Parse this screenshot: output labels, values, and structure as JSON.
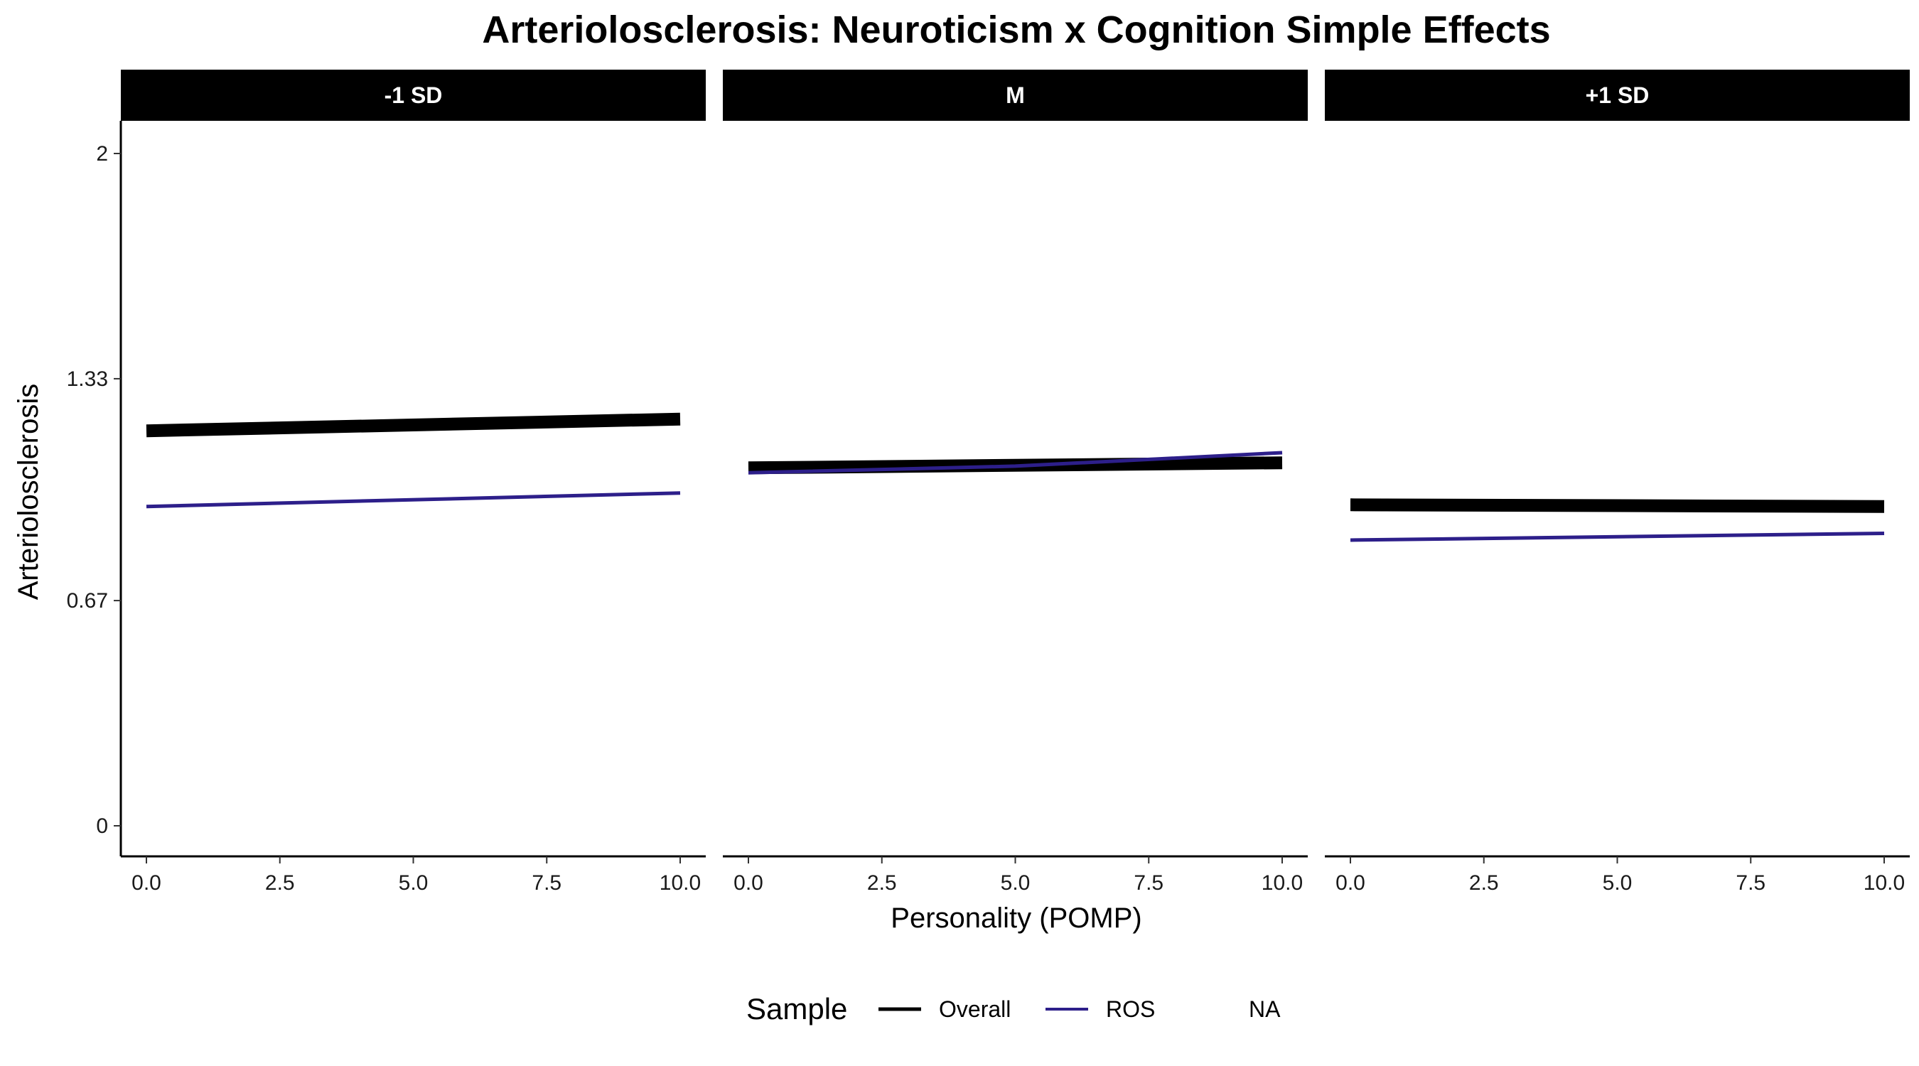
{
  "chart_data": {
    "type": "line",
    "title": "Arteriolosclerosis: Neuroticism x Cognition Simple Effects",
    "xlabel": "Personality (POMP)",
    "ylabel": "Arteriolosclerosis",
    "xlim": [
      0,
      10
    ],
    "ylim": [
      0,
      2
    ],
    "x_ticks": [
      "0.0",
      "2.5",
      "5.0",
      "7.5",
      "10.0"
    ],
    "x_tick_values": [
      0,
      2.5,
      5,
      7.5,
      10
    ],
    "y_ticks": [
      "0",
      "0.67",
      "1.33",
      "2"
    ],
    "y_tick_values": [
      0,
      0.67,
      1.33,
      2
    ],
    "grid": false,
    "legend": {
      "title": "Sample",
      "position": "bottom",
      "entries": [
        {
          "label": "Overall",
          "color": "#000000"
        },
        {
          "label": "ROS",
          "color": "#2d1f8a"
        },
        {
          "label": "NA",
          "color": null
        }
      ]
    },
    "facets": [
      {
        "label": "-1 SD",
        "series": [
          {
            "name": "Overall",
            "color": "#000000",
            "x": [
              0,
              10
            ],
            "y": [
              1.175,
              1.21
            ]
          },
          {
            "name": "ROS",
            "color": "#2d1f8a",
            "x": [
              0,
              10
            ],
            "y": [
              0.95,
              0.99
            ]
          }
        ]
      },
      {
        "label": "M",
        "series": [
          {
            "name": "Overall",
            "color": "#000000",
            "x": [
              0,
              10
            ],
            "y": [
              1.065,
              1.08
            ]
          },
          {
            "name": "ROS",
            "color": "#2d1f8a",
            "x": [
              0,
              5,
              10
            ],
            "y": [
              1.05,
              1.07,
              1.11
            ]
          }
        ]
      },
      {
        "label": "+1 SD",
        "series": [
          {
            "name": "Overall",
            "color": "#000000",
            "x": [
              0,
              10
            ],
            "y": [
              0.955,
              0.95
            ]
          },
          {
            "name": "ROS",
            "color": "#2d1f8a",
            "x": [
              0,
              10
            ],
            "y": [
              0.85,
              0.87
            ]
          }
        ]
      }
    ]
  }
}
